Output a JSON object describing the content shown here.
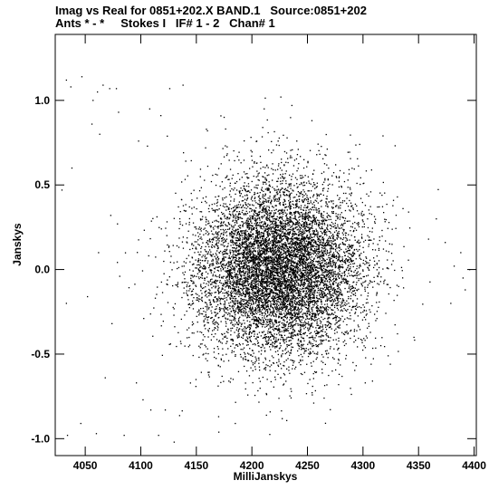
{
  "header": {
    "line1": "Imag vs Real for 0851+202.X BAND.1   Source:0851+202",
    "line2": "Ants * - *     Stokes I   IF# 1 - 2   Chan# 1"
  },
  "chart_data": {
    "type": "scatter",
    "title": "Imag vs Real for 0851+202.X BAND.1   Source:0851+202",
    "subtitle": "Ants * - *     Stokes I   IF# 1 - 2   Chan# 1",
    "xlabel": "MilliJanskys",
    "ylabel": "Janskys",
    "xlim": [
      4023,
      4402
    ],
    "ylim": [
      -1.1,
      1.39
    ],
    "xticks": [
      4050,
      4100,
      4150,
      4200,
      4250,
      4300,
      4350,
      4400
    ],
    "yticks": [
      -1.0,
      -0.5,
      0.0,
      0.5,
      1.0
    ],
    "xtick_labels": [
      "4050",
      "4100",
      "4150",
      "4200",
      "4250",
      "4300",
      "4350",
      "4400"
    ],
    "ytick_labels": [
      "-1.0",
      "-0.5",
      "0.0",
      "0.5",
      "1.0"
    ],
    "grid": false,
    "point_color": "#000000",
    "distribution": {
      "count": 9000,
      "center": [
        4225,
        0.0
      ],
      "spread": [
        38,
        0.26
      ]
    },
    "outliers": [
      [
        4033,
        1.12
      ],
      [
        4037,
        1.08
      ],
      [
        4047,
        1.14
      ],
      [
        4057,
        1.0
      ],
      [
        4061,
        1.05
      ],
      [
        4066,
        1.09
      ],
      [
        4072,
        1.07
      ],
      [
        4078,
        1.07
      ],
      [
        4126,
        1.07
      ],
      [
        4138,
        1.09
      ],
      [
        4108,
        0.95
      ],
      [
        4080,
        0.93
      ],
      [
        4118,
        0.91
      ],
      [
        4056,
        0.86
      ],
      [
        4063,
        0.8
      ],
      [
        4098,
        0.76
      ],
      [
        4106,
        0.73
      ],
      [
        4038,
        0.6
      ],
      [
        4029,
        0.47
      ],
      [
        4033,
        -0.2
      ],
      [
        4034,
        -0.98
      ],
      [
        4046,
        -0.91
      ],
      [
        4060,
        -0.97
      ],
      [
        4068,
        -0.64
      ],
      [
        4085,
        -0.98
      ],
      [
        4096,
        -0.67
      ],
      [
        4102,
        -0.77
      ],
      [
        4109,
        -0.83
      ],
      [
        4116,
        -0.98
      ],
      [
        4122,
        -0.83
      ],
      [
        4130,
        -1.02
      ],
      [
        4396,
        0.0
      ],
      [
        4390,
        -0.05
      ],
      [
        4388,
        0.1
      ],
      [
        4392,
        -0.12
      ],
      [
        4374,
        0.16
      ],
      [
        4379,
        -0.2
      ],
      [
        4382,
        0.02
      ],
      [
        4359,
        0.18
      ],
      [
        4366,
        0.3
      ],
      [
        4341,
        0.34
      ],
      [
        4336,
        0.36
      ],
      [
        4318,
        0.79
      ],
      [
        4297,
        0.74
      ],
      [
        4254,
        0.88
      ],
      [
        4236,
        0.97
      ],
      [
        4226,
        1.02
      ],
      [
        4211,
        0.95
      ],
      [
        4175,
        0.9
      ],
      [
        4159,
        0.83
      ],
      [
        4160,
        0.82
      ],
      [
        4331,
        -0.38
      ],
      [
        4316,
        -0.45
      ],
      [
        4291,
        -0.55
      ],
      [
        4278,
        -0.68
      ],
      [
        4265,
        -0.76
      ],
      [
        4185,
        -0.91
      ],
      [
        4170,
        -0.87
      ],
      [
        4073,
        0.32
      ],
      [
        4079,
        0.27
      ],
      [
        4062,
        0.1
      ],
      [
        4052,
        -0.16
      ],
      [
        4074,
        -0.32
      ],
      [
        4081,
        -0.04
      ]
    ]
  }
}
